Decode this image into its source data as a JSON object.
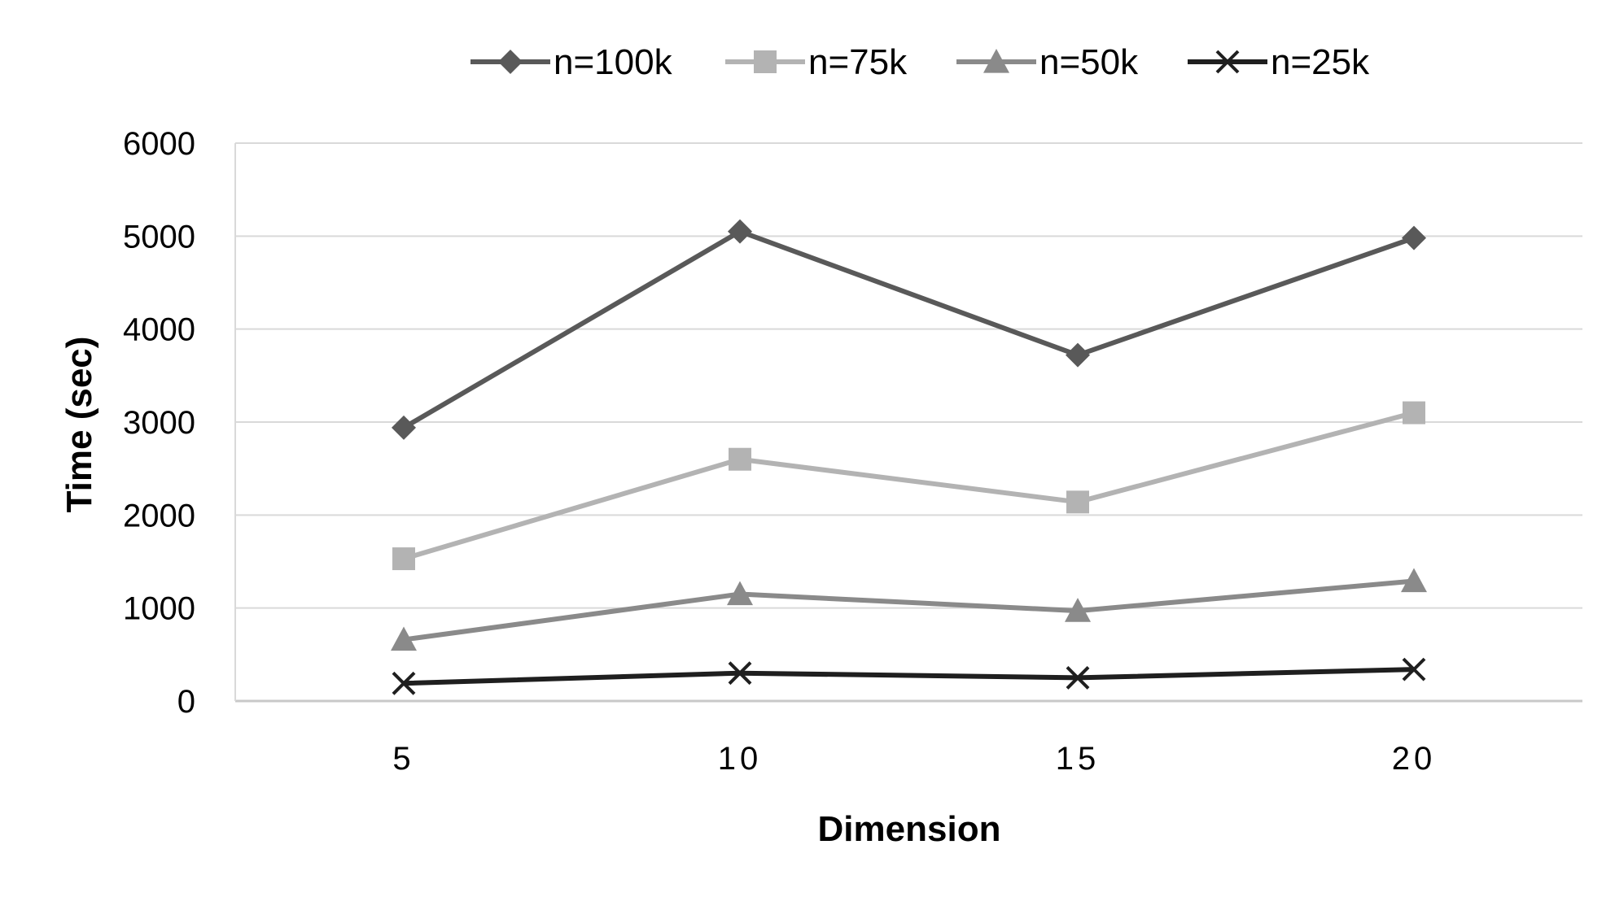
{
  "chart_data": {
    "type": "line",
    "title": "",
    "xlabel": "Dimension",
    "ylabel": "Time (sec)",
    "categories": [
      "5",
      "10",
      "15",
      "20"
    ],
    "x": [
      5,
      10,
      15,
      20
    ],
    "ylim": [
      0,
      6000
    ],
    "yticks": [
      "0",
      "1000",
      "2000",
      "3000",
      "4000",
      "5000",
      "6000"
    ],
    "grid": "horizontal",
    "legend_position": "top",
    "series": [
      {
        "name": "n=100k",
        "values": [
          2940,
          5050,
          3720,
          4980
        ],
        "marker": "diamond",
        "color": "#595959"
      },
      {
        "name": "n=75k",
        "values": [
          1530,
          2600,
          2140,
          3100
        ],
        "marker": "square",
        "color": "#b3b3b3"
      },
      {
        "name": "n=50k",
        "values": [
          660,
          1150,
          970,
          1290
        ],
        "marker": "triangle",
        "color": "#8a8a8a"
      },
      {
        "name": "n=25k",
        "values": [
          190,
          300,
          250,
          340
        ],
        "marker": "x",
        "color": "#1f1f1f"
      }
    ]
  }
}
